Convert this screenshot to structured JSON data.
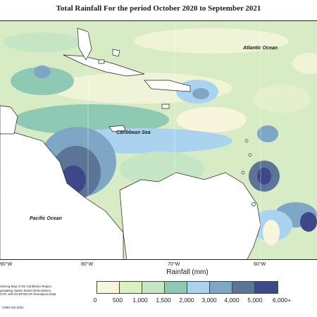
{
  "title": "Total Rainfall For the period October 2020 to September 2021",
  "map": {
    "labels": {
      "atlantic": "Atlantic Ocean",
      "caribbean": "Caribbean Sea",
      "pacific": "Pacific Ocean"
    },
    "longitude_labels": [
      "90°W",
      "80°W",
      "70°W",
      "60°W"
    ]
  },
  "legend": {
    "title": "Rainfall (mm)",
    "tick_labels": [
      "0",
      "500",
      "1,000",
      "1,500",
      "2,000",
      "3,000",
      "4,000",
      "5,000",
      "6,000+"
    ],
    "colors": [
      "#f7f6dd",
      "#d9f2bd",
      "#c5e6c4",
      "#8ec9b4",
      "#a9d3ef",
      "#7ea7c6",
      "#5c7596",
      "#3e4787"
    ]
  },
  "footnote": {
    "line1": "nitoring Map of the Caribbean Region.",
    "line2": "gregating station based observations,",
    "line3": "COF, with NCEP/NCAR Reanalysis Data"
  },
  "credit": "CIMH Oct-2021"
}
